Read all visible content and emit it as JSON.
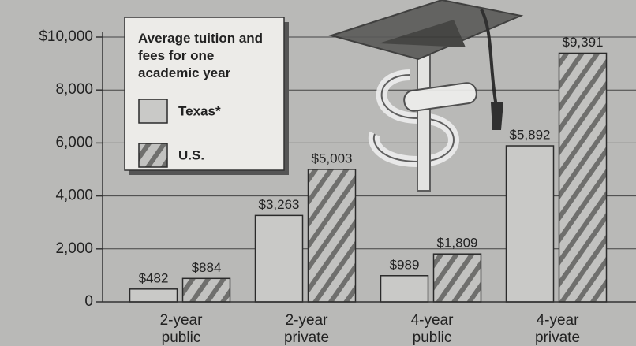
{
  "chart_data": {
    "type": "bar",
    "legend_title": "Average tuition and fees for one academic year",
    "categories": [
      "2-year public",
      "2-year private",
      "4-year public",
      "4-year private"
    ],
    "series": [
      {
        "name": "Texas*",
        "color": "#c9c9c7",
        "hatch": false,
        "values": [
          482,
          3263,
          989,
          5892
        ],
        "value_labels": [
          "$482",
          "$3,263",
          "$989",
          "$5,892"
        ]
      },
      {
        "name": "U.S.",
        "color": "#c2c2c0",
        "hatch": true,
        "values": [
          884,
          5003,
          1809,
          9391
        ],
        "value_labels": [
          "$884",
          "$5,003",
          "$1,809",
          "$9,391"
        ]
      }
    ],
    "ylim": [
      0,
      10000
    ],
    "yticks": [
      0,
      {
        "value": 2000,
        "label": "2,000"
      },
      {
        "value": 4000,
        "label": "4,000"
      },
      {
        "value": 6000,
        "label": "6,000"
      },
      {
        "value": 8000,
        "label": "8,000"
      },
      {
        "value": 10000,
        "label": "$10,000"
      }
    ],
    "grid": true
  }
}
